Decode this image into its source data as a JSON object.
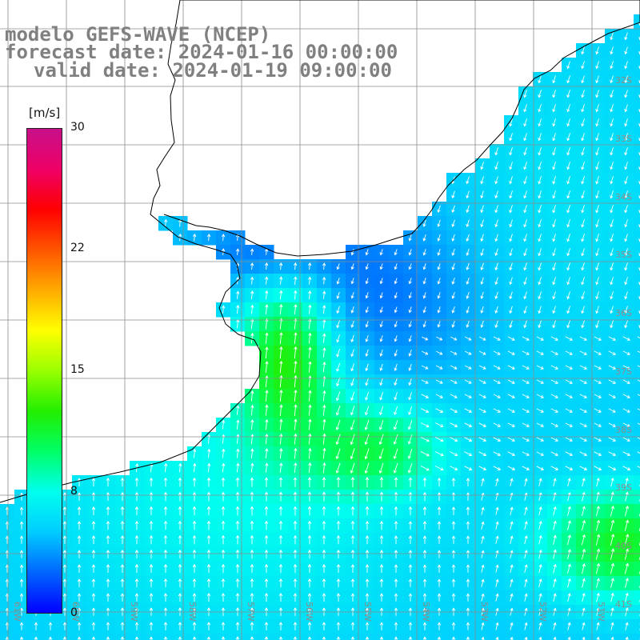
{
  "title": {
    "line1": "modelo GEFS-WAVE (NCEP)",
    "line2": "forecast date: 2024-01-16 00:00:00",
    "line3": "valid date: 2024-01-19 09:00:00"
  },
  "colorbar": {
    "unit": "[m/s]",
    "min": 0,
    "max": 30,
    "ticks": [
      "30",
      "22",
      "15",
      "8",
      "0"
    ],
    "stops": [
      "#0000ff",
      "#0066ff",
      "#00ccff",
      "#00ffee",
      "#00ff66",
      "#22ee00",
      "#99ff00",
      "#ffff00",
      "#ffaa00",
      "#ff5500",
      "#ff0000",
      "#ee0066",
      "#c8108a"
    ]
  },
  "map": {
    "lat_labels": [
      "32S",
      "33S",
      "34S",
      "35S",
      "36S",
      "37S",
      "38S",
      "39S",
      "40S",
      "41S"
    ],
    "lon_labels": [
      "61W",
      "60W",
      "59W",
      "58W",
      "57W",
      "56W",
      "55W",
      "54W",
      "53W",
      "52W",
      "51W"
    ],
    "colors": {
      "land": "#ffffff",
      "coast": "#000000",
      "grid": "#8c8c8c",
      "arrow": "#ffffff"
    }
  }
}
